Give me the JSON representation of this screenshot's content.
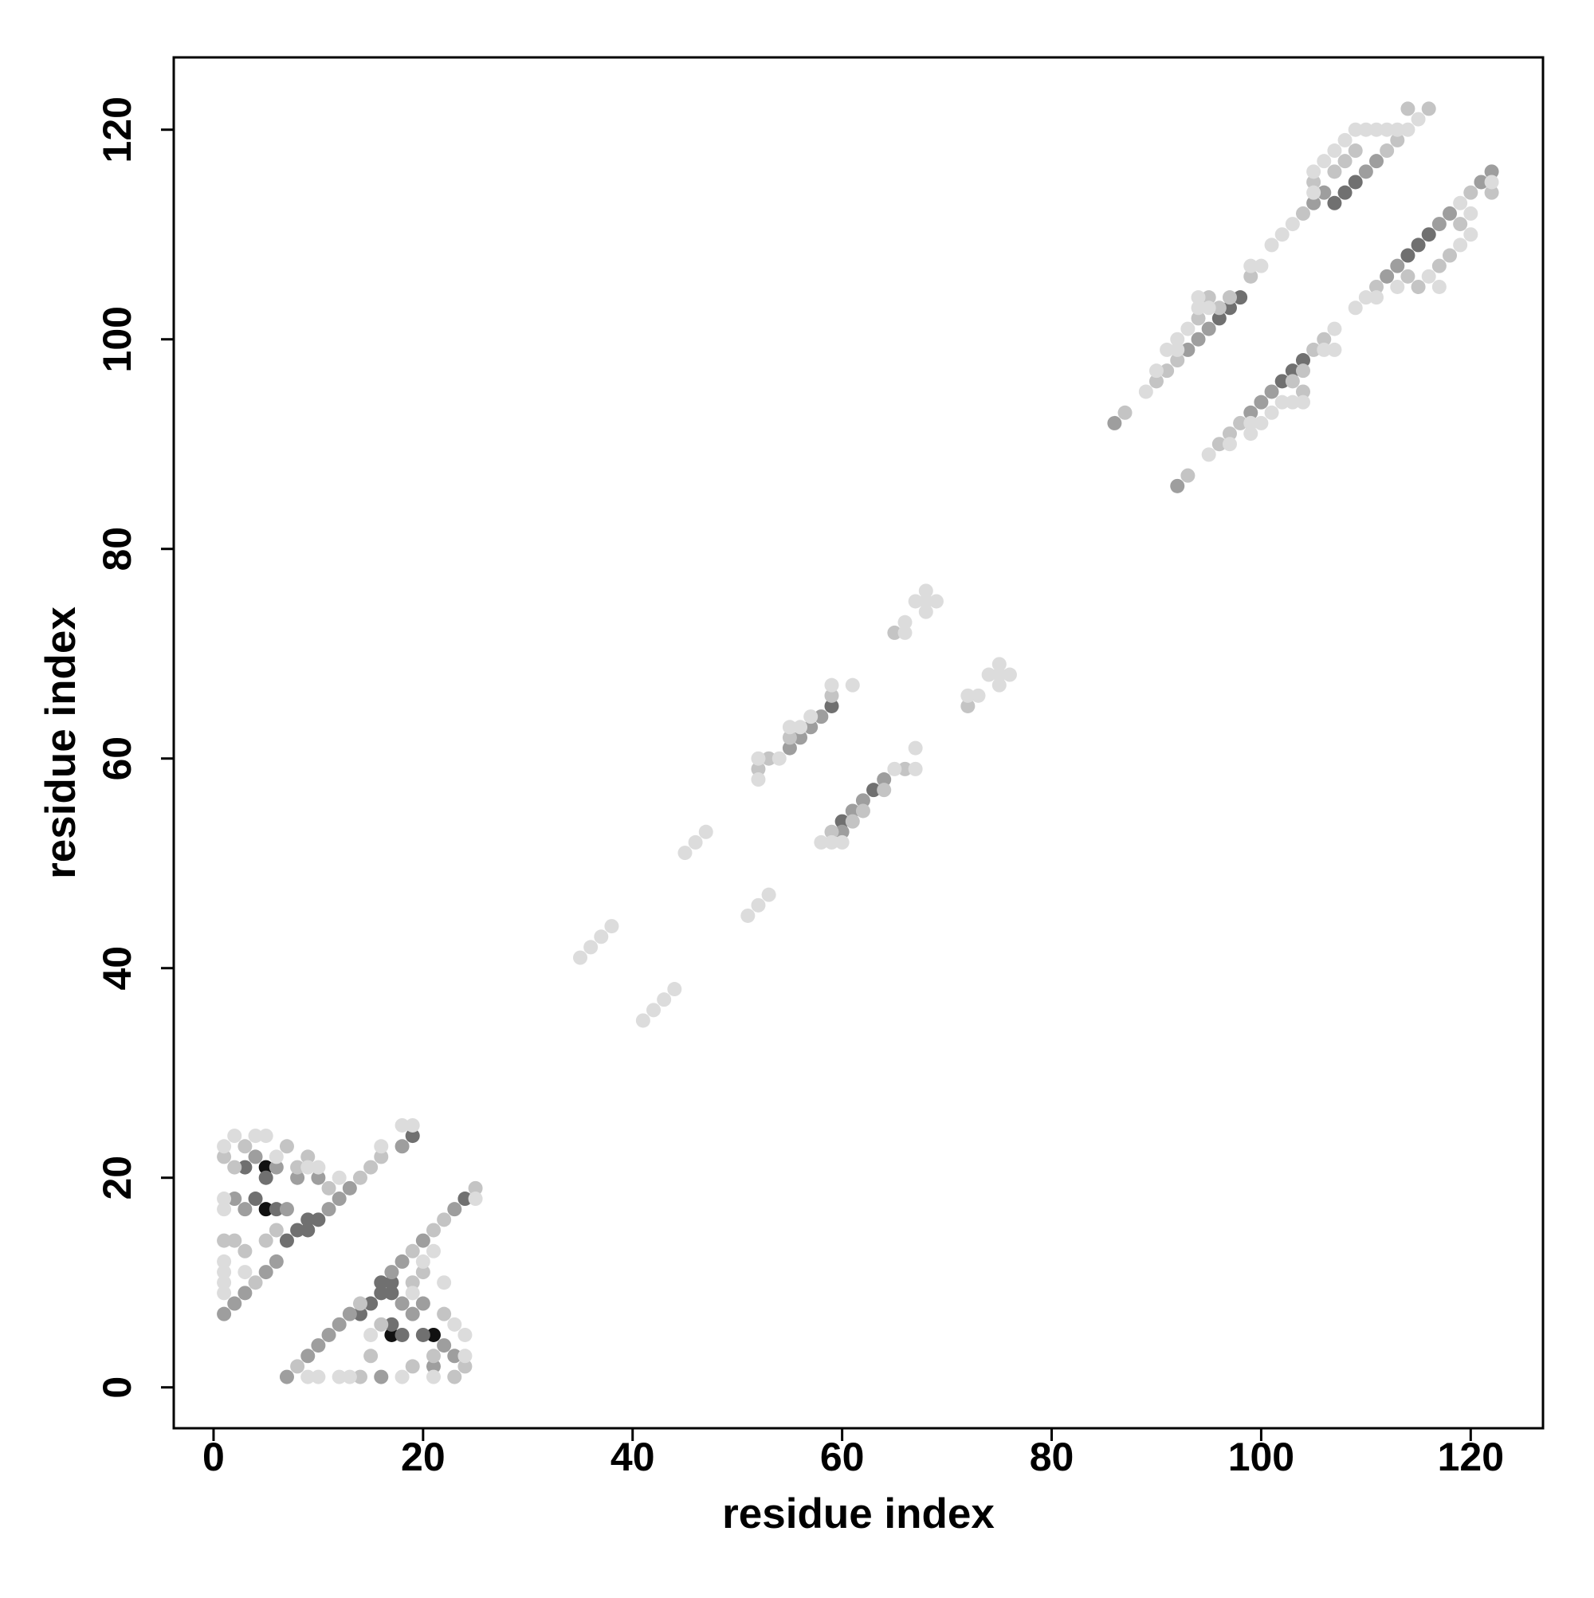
{
  "chart_data": {
    "type": "scatter",
    "xlabel": "residue index",
    "ylabel": "residue index",
    "xlim": [
      -3.8,
      126.9
    ],
    "ylim": [
      -3.9,
      126.9
    ],
    "xticks": [
      0,
      20,
      40,
      60,
      80,
      100,
      120
    ],
    "yticks": [
      0,
      20,
      40,
      60,
      80,
      100,
      120
    ],
    "series": [
      {
        "color": "#111111",
        "x": [
          5,
          5,
          17,
          21
        ],
        "y": [
          17,
          21,
          5,
          5
        ]
      },
      {
        "color": "#707070",
        "x": [
          4,
          5,
          6,
          9,
          10,
          8,
          9,
          3,
          7,
          17,
          16,
          17,
          16,
          15,
          20,
          18,
          24,
          19,
          98,
          97,
          96,
          104,
          103,
          102,
          109,
          108,
          107,
          115,
          114,
          116,
          59,
          60,
          63,
          14,
          17
        ],
        "y": [
          18,
          20,
          17,
          16,
          16,
          15,
          15,
          21,
          14,
          9,
          10,
          10,
          9,
          8,
          5,
          5,
          18,
          24,
          104,
          103,
          102,
          98,
          97,
          96,
          115,
          114,
          113,
          109,
          108,
          110,
          65,
          54,
          57,
          7,
          6
        ]
      },
      {
        "color": "#9e9e9e",
        "x": [
          1,
          2,
          3,
          5,
          6,
          11,
          12,
          13,
          18,
          2,
          3,
          7,
          8,
          10,
          6,
          4,
          7,
          9,
          10,
          11,
          12,
          13,
          17,
          18,
          20,
          23,
          16,
          18,
          20,
          22,
          23,
          21,
          19,
          86,
          92,
          95,
          94,
          93,
          101,
          100,
          99,
          105,
          106,
          110,
          111,
          113,
          112,
          117,
          118,
          121,
          122,
          55,
          56,
          57,
          58,
          61,
          62,
          64,
          60
        ],
        "y": [
          7,
          8,
          9,
          11,
          12,
          17,
          18,
          19,
          23,
          18,
          17,
          17,
          20,
          20,
          21,
          22,
          1,
          3,
          4,
          5,
          6,
          7,
          11,
          12,
          14,
          17,
          1,
          8,
          8,
          4,
          3,
          2,
          7,
          92,
          86,
          101,
          100,
          99,
          95,
          94,
          93,
          113,
          114,
          116,
          117,
          107,
          106,
          111,
          112,
          115,
          116,
          61,
          62,
          63,
          64,
          55,
          56,
          58,
          53
        ]
      },
      {
        "color": "#c4c4c4",
        "x": [
          4,
          7,
          8,
          9,
          11,
          14,
          15,
          16,
          1,
          2,
          3,
          5,
          6,
          1,
          2,
          3,
          8,
          14,
          19,
          21,
          22,
          25,
          14,
          15,
          19,
          21,
          23,
          24,
          16,
          19,
          20,
          22,
          87,
          90,
          91,
          92,
          96,
          95,
          94,
          97,
          99,
          104,
          105,
          107,
          108,
          109,
          112,
          113,
          114,
          116,
          93,
          96,
          97,
          98,
          103,
          104,
          104,
          105,
          106,
          111,
          114,
          115,
          117,
          118,
          119,
          120,
          122,
          52,
          53,
          55,
          59,
          59,
          61,
          62,
          64,
          66,
          72,
          65
        ],
        "y": [
          10,
          23,
          21,
          22,
          19,
          20,
          21,
          22,
          14,
          14,
          13,
          14,
          15,
          22,
          21,
          23,
          2,
          8,
          13,
          15,
          16,
          19,
          1,
          3,
          2,
          3,
          1,
          2,
          6,
          10,
          11,
          7,
          93,
          96,
          97,
          98,
          103,
          104,
          102,
          104,
          106,
          112,
          115,
          116,
          117,
          118,
          118,
          119,
          122,
          122,
          87,
          90,
          91,
          92,
          96,
          97,
          95,
          99,
          100,
          105,
          106,
          105,
          107,
          108,
          111,
          114,
          114,
          59,
          60,
          62,
          66,
          53,
          54,
          55,
          57,
          59,
          65,
          72
        ]
      },
      {
        "color": "#dcdcdc",
        "x": [
          1,
          1,
          1,
          1,
          1,
          1,
          1,
          2,
          3,
          4,
          5,
          6,
          9,
          10,
          12,
          16,
          18,
          19,
          9,
          10,
          12,
          13,
          15,
          18,
          19,
          20,
          21,
          22,
          23,
          24,
          24,
          21,
          25,
          35,
          36,
          37,
          38,
          41,
          42,
          43,
          44,
          45,
          46,
          47,
          51,
          52,
          53,
          52,
          52,
          54,
          55,
          56,
          57,
          59,
          61,
          58,
          59,
          60,
          65,
          67,
          67,
          66,
          66,
          68,
          68,
          68,
          69,
          67,
          72,
          73,
          74,
          75,
          75,
          76,
          75,
          89,
          90,
          91,
          92,
          92,
          93,
          94,
          94,
          95,
          99,
          100,
          101,
          102,
          103,
          105,
          105,
          106,
          107,
          108,
          109,
          110,
          111,
          112,
          113,
          114,
          115,
          95,
          97,
          99,
          99,
          100,
          101,
          102,
          103,
          104,
          106,
          107,
          107,
          109,
          110,
          111,
          113,
          116,
          117,
          119,
          120,
          120,
          119,
          122
        ],
        "y": [
          9,
          10,
          11,
          12,
          17,
          18,
          23,
          24,
          11,
          24,
          24,
          22,
          21,
          21,
          20,
          23,
          25,
          25,
          1,
          1,
          1,
          1,
          5,
          1,
          9,
          12,
          13,
          10,
          6,
          5,
          3,
          1,
          18,
          41,
          42,
          43,
          44,
          35,
          36,
          37,
          38,
          51,
          52,
          53,
          45,
          46,
          47,
          58,
          60,
          60,
          63,
          63,
          64,
          67,
          67,
          52,
          52,
          52,
          59,
          59,
          61,
          72,
          73,
          74,
          75,
          76,
          75,
          75,
          66,
          66,
          68,
          67,
          69,
          68,
          68,
          95,
          97,
          99,
          99,
          100,
          101,
          103,
          104,
          103,
          107,
          107,
          109,
          110,
          111,
          114,
          116,
          117,
          118,
          119,
          120,
          120,
          120,
          120,
          120,
          120,
          121,
          89,
          90,
          91,
          92,
          92,
          93,
          94,
          94,
          94,
          99,
          101,
          99,
          103,
          104,
          104,
          105,
          106,
          105,
          109,
          110,
          112,
          113,
          115
        ]
      }
    ]
  }
}
